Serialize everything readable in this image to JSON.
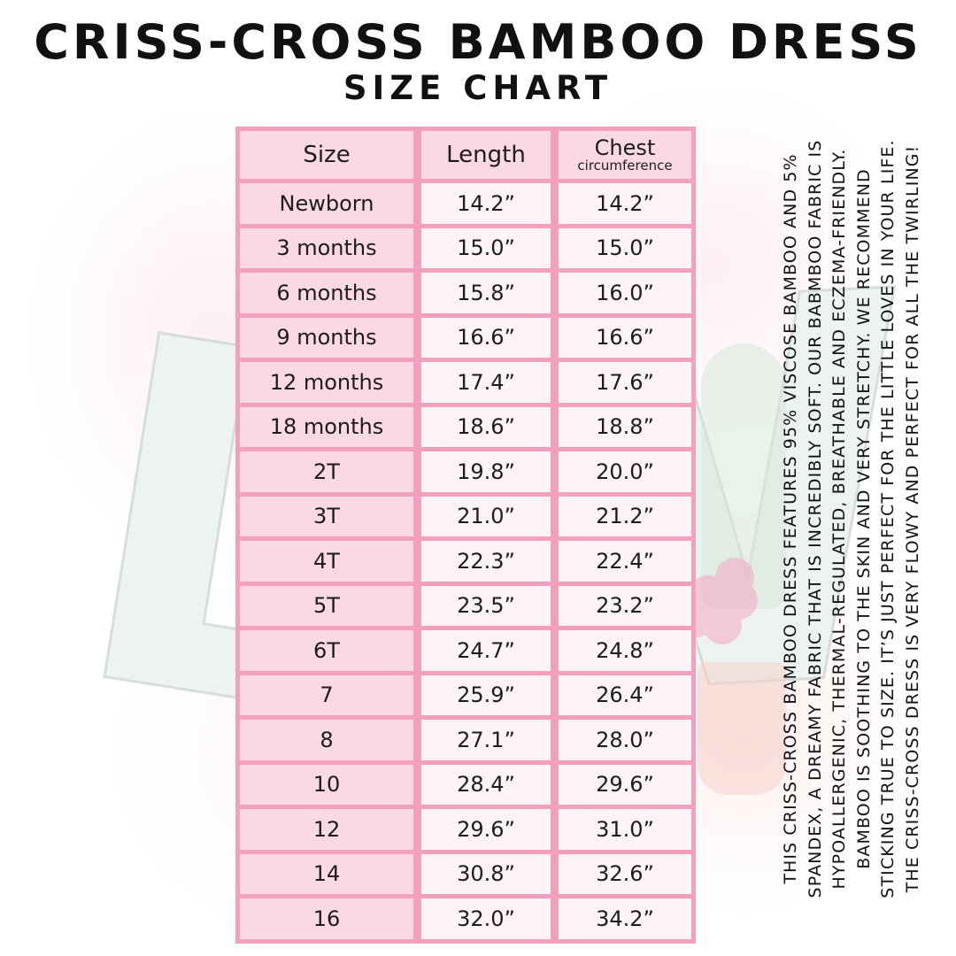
{
  "page": {
    "title": "CRISS-CROSS BAMBOO DRESS",
    "subtitle": "SIZE CHART"
  },
  "chart_data": {
    "type": "table",
    "title": "CRISS-CROSS BAMBOO DRESS SIZE CHART",
    "columns": [
      "Size",
      "Length",
      "Chest circumference"
    ],
    "header": {
      "size": "Size",
      "length": "Length",
      "chest": "Chest",
      "chest_sub": "circumference"
    },
    "rows": [
      {
        "size": "Newborn",
        "length": "14.2”",
        "chest": "14.2”"
      },
      {
        "size": "3 months",
        "length": "15.0”",
        "chest": "15.0”"
      },
      {
        "size": "6 months",
        "length": "15.8”",
        "chest": "16.0”"
      },
      {
        "size": "9 months",
        "length": "16.6”",
        "chest": "16.6”"
      },
      {
        "size": "12 months",
        "length": "17.4”",
        "chest": "17.6”"
      },
      {
        "size": "18 months",
        "length": "18.6”",
        "chest": "18.8”"
      },
      {
        "size": "2T",
        "length": "19.8”",
        "chest": "20.0”"
      },
      {
        "size": "3T",
        "length": "21.0”",
        "chest": "21.2”"
      },
      {
        "size": "4T",
        "length": "22.3”",
        "chest": "22.4”"
      },
      {
        "size": "5T",
        "length": "23.5”",
        "chest": "23.2”"
      },
      {
        "size": "6T",
        "length": "24.7”",
        "chest": "24.8”"
      },
      {
        "size": "7",
        "length": "25.9”",
        "chest": "26.4”"
      },
      {
        "size": "8",
        "length": "27.1”",
        "chest": "28.0”"
      },
      {
        "size": "10",
        "length": "28.4”",
        "chest": "29.6”"
      },
      {
        "size": "12",
        "length": "29.6”",
        "chest": "31.0”"
      },
      {
        "size": "14",
        "length": "30.8”",
        "chest": "32.6”"
      },
      {
        "size": "16",
        "length": "32.0”",
        "chest": "34.2”"
      }
    ]
  },
  "side_note": {
    "lines": [
      "THIS CRISS-CROSS BAMBOO DRESS FEATURES 95% VISCOSE BAMBOO AND 5%",
      "SPANDEX, A DREAMY FABRIC THAT IS INCREDIBLY SOFT. OUR BABMBOO FABRIC IS",
      "HYPOALLERGENIC, THERMAL-REGULATED, BREATHABLE AND ECZEMA-FRIENDLY.",
      "BAMBOO IS SOOTHING TO THE SKIN AND VERY STRETCHY. WE RECOMMEND",
      "STICKING TRUE TO SIZE. IT’S JUST PERFECT FOR THE LITTLE LOVES IN YOUR LIFE.",
      "THE CRISS-CROSS DRESS IS VERY FLOWY AND PERFECT FOR ALL THE TWIRLING!"
    ]
  },
  "watermark": {
    "letters": [
      "L",
      "W"
    ]
  },
  "colors": {
    "cell_pink": "#fbd9e4",
    "border_pink": "#f2a0bd",
    "text": "#1c1c1c",
    "background": "#ffffff"
  }
}
